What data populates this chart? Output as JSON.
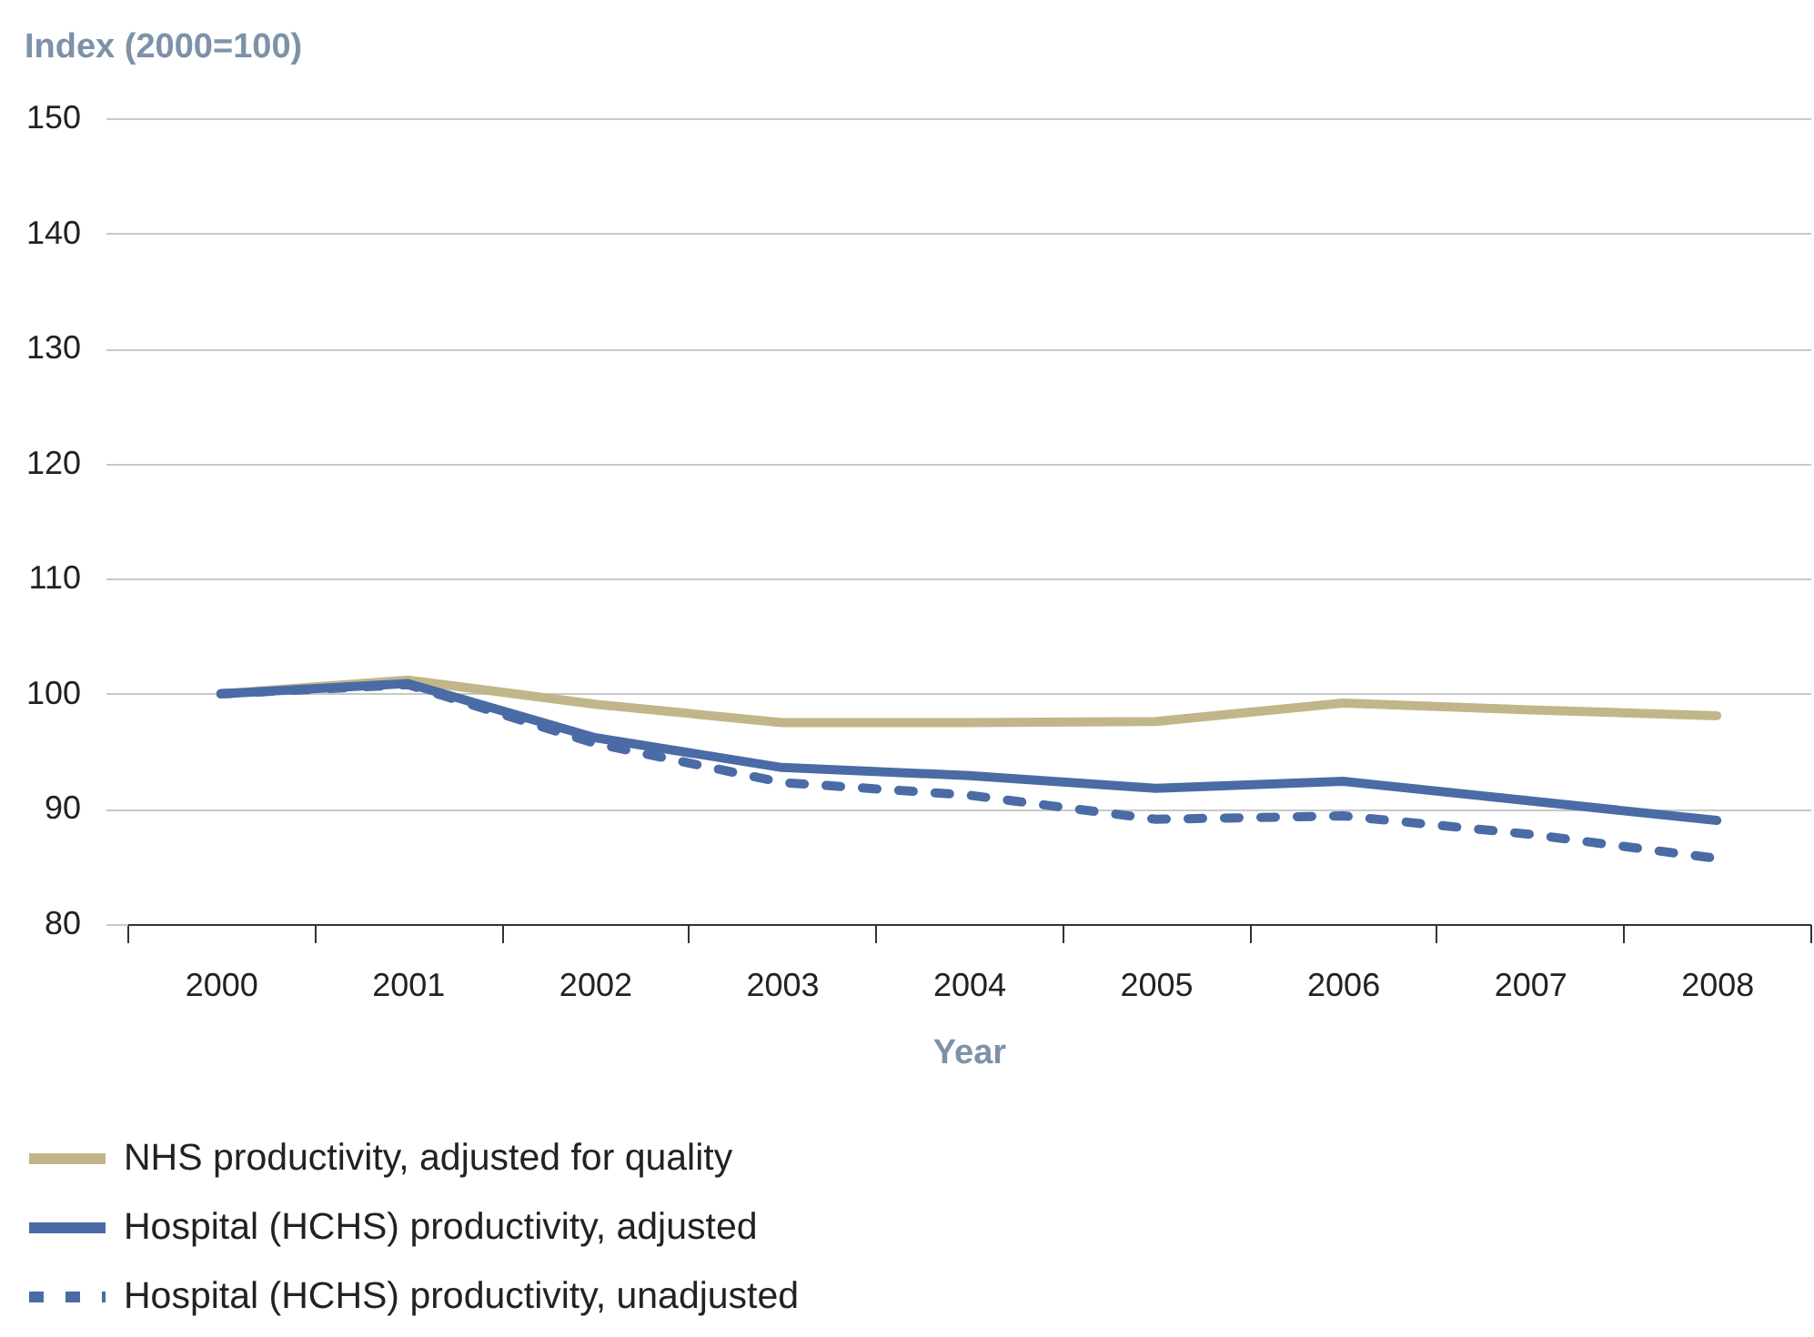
{
  "chart_data": {
    "type": "line",
    "ylabel": "Index (2000=100)",
    "xlabel": "Year",
    "categories": [
      "2000",
      "2001",
      "2002",
      "2003",
      "2004",
      "2005",
      "2006",
      "2007",
      "2008"
    ],
    "ylim": [
      80,
      150
    ],
    "yticks": [
      80,
      90,
      100,
      110,
      120,
      130,
      140,
      150
    ],
    "grid": "y",
    "legend": "bottom",
    "line_style": "solid",
    "series": [
      {
        "name": "NHS productivity, adjusted for quality",
        "color": "#c0b68a",
        "values": [
          100,
          101.2,
          99.1,
          97.5,
          97.5,
          97.6,
          99.2,
          98.6,
          98.1
        ]
      },
      {
        "name": "Hospital (HCHS) productivity, adjusted",
        "color": "#4a6ba5",
        "values": [
          100,
          100.9,
          96.2,
          93.6,
          92.9,
          91.8,
          92.4,
          90.7,
          89.0
        ]
      },
      {
        "name": "Hospital (HCHS) productivity, unadjusted",
        "color": "#4a6ba5",
        "line_style": "dashed",
        "values": [
          100,
          100.8,
          95.7,
          92.3,
          91.2,
          89.1,
          89.4,
          87.8,
          85.7
        ]
      }
    ]
  }
}
